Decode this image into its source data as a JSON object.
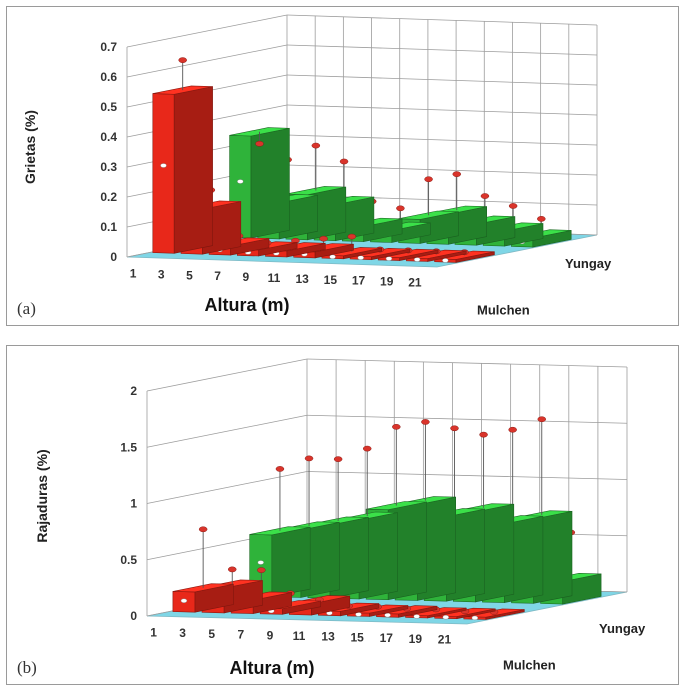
{
  "chart_data": [
    {
      "type": "bar",
      "style": "3d-grouped",
      "panel_label": "(a)",
      "ylabel": "Grietas (%)",
      "xlabel": "Altura (m)",
      "ylim": [
        0,
        0.7
      ],
      "yticks": [
        "0",
        "0.1",
        "0.2",
        "0.3",
        "0.4",
        "0.5",
        "0.6",
        "0.7"
      ],
      "categories": [
        "1",
        "3",
        "5",
        "7",
        "9",
        "11",
        "13",
        "15",
        "17",
        "19",
        "21"
      ],
      "grid": true,
      "colors": {
        "Mulchen": "#e8281a",
        "Yungay": "#2fb33a",
        "floor": "#7fd6e6"
      },
      "series": [
        {
          "name": "Mulchen",
          "values": [
            0.53,
            0.15,
            0.03,
            0.02,
            0.02,
            0.02,
            0.01,
            0.01,
            0.01,
            0.01,
            0.01
          ],
          "error_max": [
            0.63,
            0.2,
            0.05,
            0.03,
            0.04,
            0.05,
            0.06,
            0.02,
            0.02,
            0.02,
            0.02
          ]
        },
        {
          "name": "Yungay",
          "values": [
            0.34,
            0.12,
            0.15,
            0.12,
            0.05,
            0.04,
            0.08,
            0.1,
            0.07,
            0.05,
            0.03
          ],
          "error_max": [
            0.3,
            0.25,
            0.3,
            0.25,
            0.12,
            0.1,
            0.2,
            0.22,
            0.15,
            0.12,
            0.08
          ]
        }
      ]
    },
    {
      "type": "bar",
      "style": "3d-grouped",
      "panel_label": "(b)",
      "ylabel": "Rajaduras (%)",
      "xlabel": "Altura (m)",
      "ylim": [
        0,
        2
      ],
      "yticks": [
        "0",
        "0.5",
        "1",
        "1.5",
        "2"
      ],
      "categories": [
        "1",
        "3",
        "5",
        "7",
        "9",
        "11",
        "13",
        "15",
        "17",
        "19",
        "21"
      ],
      "grid": true,
      "colors": {
        "Mulchen": "#e8281a",
        "Yungay": "#2fb33a",
        "floor": "#7fd6e6"
      },
      "series": [
        {
          "name": "Mulchen",
          "values": [
            0.18,
            0.22,
            0.12,
            0.05,
            0.1,
            0.04,
            0.03,
            0.03,
            0.02,
            0.02,
            0.02
          ],
          "error_max": [
            0.7,
            0.35,
            0.35,
            0.15,
            0.1,
            0.05,
            0.05,
            0.04,
            0.04,
            0.03,
            0.03
          ]
        },
        {
          "name": "Yungay",
          "values": [
            0.55,
            0.6,
            0.65,
            0.7,
            0.8,
            0.85,
            0.75,
            0.8,
            0.7,
            0.75,
            0.2
          ],
          "error_max": [
            1.1,
            1.2,
            1.2,
            1.3,
            1.5,
            1.55,
            1.5,
            1.45,
            1.5,
            1.6,
            0.6
          ]
        }
      ]
    }
  ]
}
